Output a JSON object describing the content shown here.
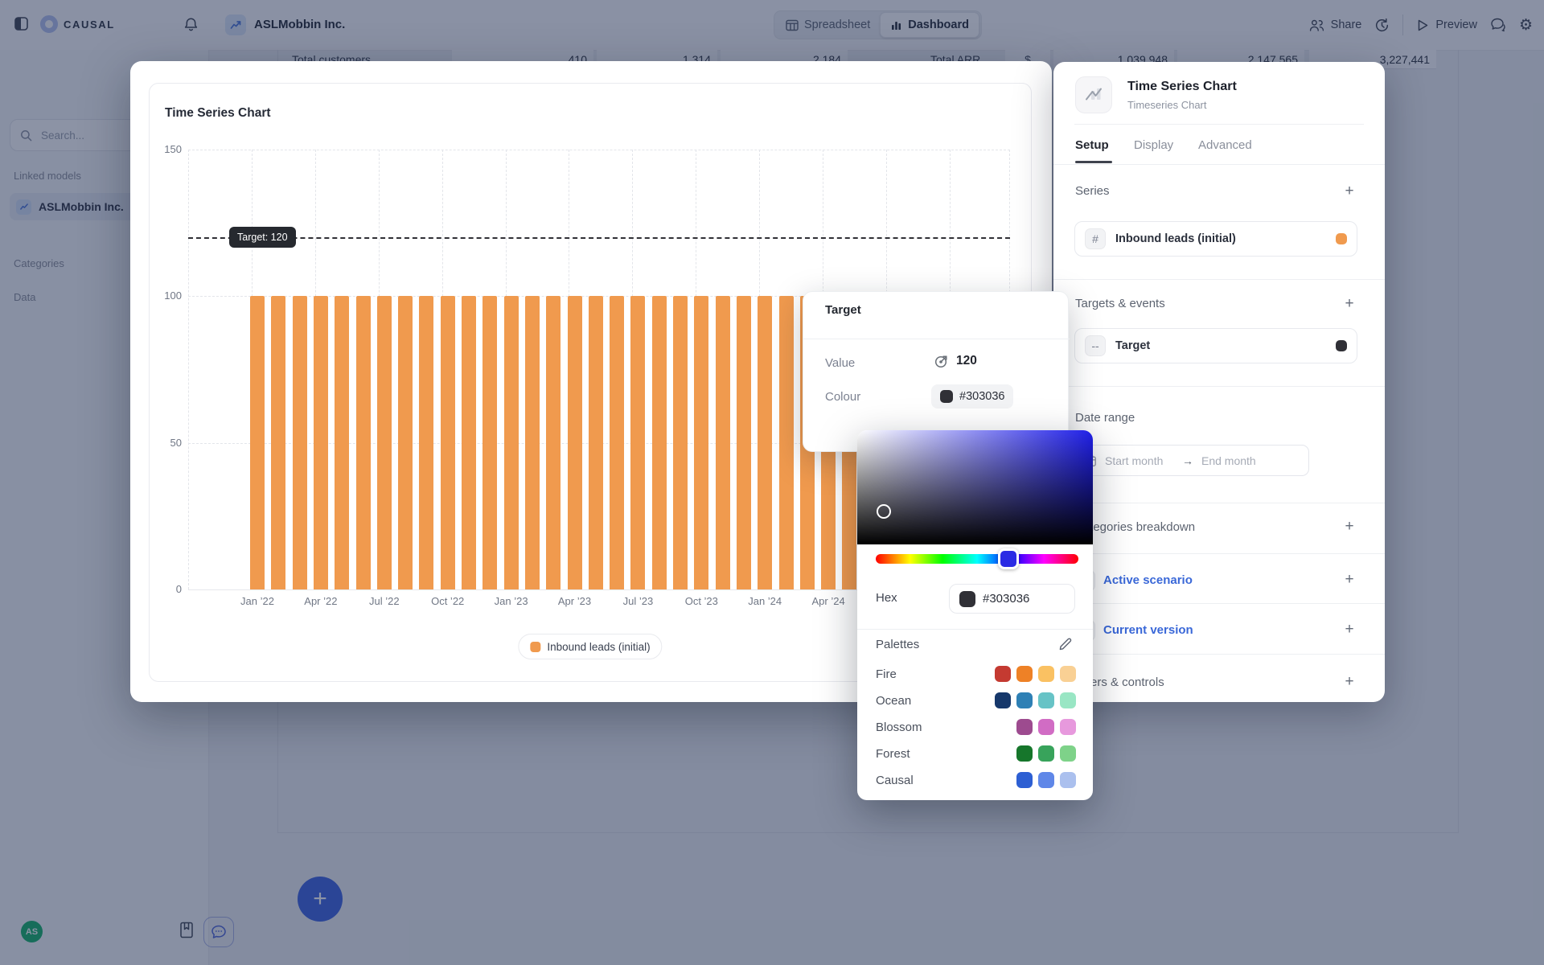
{
  "topbar": {
    "logo_text": "CAUSAL",
    "workspace_title": "ASLMobbin Inc.",
    "tabs": {
      "spreadsheet": "Spreadsheet",
      "dashboard": "Dashboard",
      "active": "Dashboard"
    },
    "actions": {
      "share": "Share",
      "preview": "Preview"
    }
  },
  "sidebar": {
    "search_placeholder": "Search...",
    "linked_models_label": "Linked models",
    "model_item": "ASLMobbin Inc.",
    "categories_label": "Categories",
    "data_label": "Data",
    "avatar_initials": "AS"
  },
  "background_table": {
    "cells": [
      "Total customers",
      "410",
      "1,314",
      "2,184",
      "Total ARR",
      "$",
      "1,039,948",
      "2,147,565",
      "3,227,441"
    ]
  },
  "chart_data": {
    "type": "bar",
    "title": "Time Series Chart",
    "x": [
      "Jan ’22",
      "Feb ’22",
      "Mar ’22",
      "Apr ’22",
      "May ’22",
      "Jun ’22",
      "Jul ’22",
      "Aug ’22",
      "Sep ’22",
      "Oct ’22",
      "Nov ’22",
      "Dec ’22",
      "Jan ’23",
      "Feb ’23",
      "Mar ’23",
      "Apr ’23",
      "May ’23",
      "Jun ’23",
      "Jul ’23",
      "Aug ’23",
      "Sep ’23",
      "Oct ’23",
      "Nov ’23",
      "Dec ’23",
      "Jan ’24",
      "Feb ’24",
      "Mar ’24",
      "Apr ’24",
      "May ’24",
      "Jun ’24"
    ],
    "x_tick_every": 3,
    "series": [
      {
        "name": "Inbound leads (initial)",
        "color": "#f09a4e",
        "values": [
          100,
          100,
          100,
          100,
          100,
          100,
          100,
          100,
          100,
          100,
          100,
          100,
          100,
          100,
          100,
          100,
          100,
          100,
          100,
          100,
          100,
          100,
          100,
          100,
          100,
          100,
          100,
          100,
          100,
          100
        ]
      }
    ],
    "target": {
      "value": 120,
      "label": "Target: 120",
      "color": "#303036"
    },
    "ylim": [
      0,
      150
    ],
    "yticks": [
      150,
      100,
      50,
      0
    ],
    "grid": true,
    "legend_position": "bottom"
  },
  "target_popover": {
    "title": "Target",
    "value_label": "Value",
    "value": "120",
    "colour_label": "Colour",
    "hex": "#303036"
  },
  "color_picker": {
    "hex_label": "Hex",
    "hex_value": "#303036",
    "selected_color": "#303036",
    "hue_color": "#2b2be4",
    "palettes_label": "Palettes",
    "palettes": [
      {
        "name": "Fire",
        "colors": [
          "#c43a31",
          "#ee8126",
          "#fac162",
          "#f9d094"
        ]
      },
      {
        "name": "Ocean",
        "colors": [
          "#16386b",
          "#2e80b5",
          "#67c3c6",
          "#99e6c4"
        ]
      },
      {
        "name": "Blossom",
        "colors": [
          "#9d4b8f",
          "#d16cc4",
          "#e799dd"
        ]
      },
      {
        "name": "Forest",
        "colors": [
          "#16762b",
          "#38a35b",
          "#7ed289"
        ]
      },
      {
        "name": "Causal",
        "colors": [
          "#2d5fd3",
          "#5f87e8",
          "#abc0ee"
        ]
      }
    ]
  },
  "settings_panel": {
    "title": "Time Series Chart",
    "subtitle": "Timeseries Chart",
    "tabs": [
      "Setup",
      "Display",
      "Advanced"
    ],
    "active_tab": "Setup",
    "series_label": "Series",
    "series_item": {
      "name": "Inbound leads (initial)",
      "color": "#f09a4e"
    },
    "targets_label": "Targets & events",
    "target_item": {
      "name": "Target",
      "color": "#303036"
    },
    "date_range_label": "Date range",
    "start_placeholder": "Start month",
    "end_placeholder": "End month",
    "rows": [
      {
        "label": "Categories breakdown"
      },
      {
        "label": "Active scenario"
      },
      {
        "label": "Current version"
      },
      {
        "label": "Filters & controls"
      }
    ]
  }
}
